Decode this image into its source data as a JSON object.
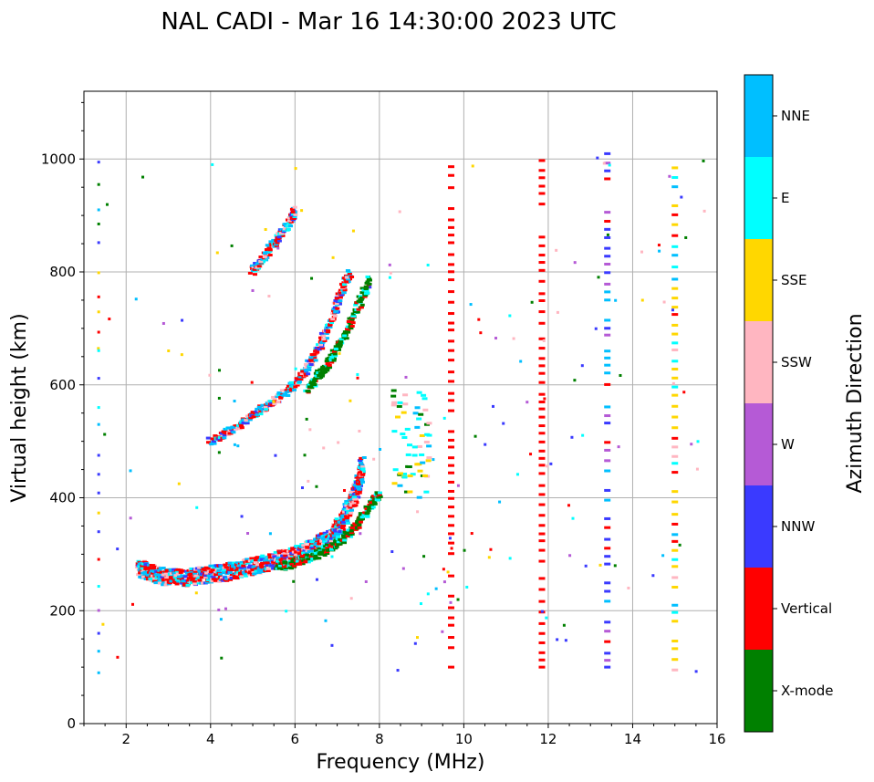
{
  "chart_data": {
    "type": "scatter",
    "title": "NAL CADI - Mar 16 14:30:00 2023 UTC",
    "xlabel": "Frequency (MHz)",
    "ylabel": "Virtual height (km)",
    "xlim": [
      1,
      16
    ],
    "ylim": [
      0,
      1120
    ],
    "xticks": [
      2,
      4,
      6,
      8,
      10,
      12,
      14,
      16
    ],
    "yticks": [
      0,
      200,
      400,
      600,
      800,
      1000
    ],
    "grid": true,
    "colorbar": {
      "title": "Azimuth Direction",
      "categories": [
        {
          "label": "X-mode",
          "color": "#008000"
        },
        {
          "label": "Vertical",
          "color": "#ff0000"
        },
        {
          "label": "NNW",
          "color": "#3a3aff"
        },
        {
          "label": "W",
          "color": "#b55ad6"
        },
        {
          "label": "SSW",
          "color": "#ffb6c1"
        },
        {
          "label": "SSE",
          "color": "#ffd700"
        },
        {
          "label": "E",
          "color": "#00ffff"
        },
        {
          "label": "NNE",
          "color": "#00bfff"
        }
      ]
    },
    "series": [
      {
        "name": "F-layer O-mode trace",
        "points": [
          [
            2.3,
            275
          ],
          [
            2.5,
            270
          ],
          [
            2.8,
            262
          ],
          [
            3.2,
            258
          ],
          [
            3.6,
            260
          ],
          [
            4.0,
            265
          ],
          [
            4.4,
            268
          ],
          [
            4.8,
            275
          ],
          [
            5.2,
            282
          ],
          [
            5.6,
            290
          ],
          [
            6.0,
            298
          ],
          [
            6.4,
            310
          ],
          [
            6.8,
            330
          ],
          [
            7.1,
            355
          ],
          [
            7.3,
            385
          ],
          [
            7.5,
            420
          ],
          [
            7.6,
            460
          ]
        ]
      },
      {
        "name": "F-layer X-mode trace",
        "points": [
          [
            5.6,
            275
          ],
          [
            6.0,
            285
          ],
          [
            6.4,
            295
          ],
          [
            6.8,
            310
          ],
          [
            7.2,
            330
          ],
          [
            7.5,
            355
          ],
          [
            7.8,
            385
          ],
          [
            8.0,
            410
          ]
        ]
      },
      {
        "name": "Second-hop trace",
        "points": [
          [
            4.0,
            500
          ],
          [
            4.5,
            520
          ],
          [
            5.0,
            545
          ],
          [
            5.5,
            570
          ],
          [
            6.0,
            600
          ],
          [
            6.3,
            630
          ],
          [
            6.6,
            670
          ],
          [
            6.9,
            720
          ],
          [
            7.1,
            765
          ],
          [
            7.3,
            800
          ]
        ]
      },
      {
        "name": "Second-hop X-mode trace",
        "points": [
          [
            6.3,
            590
          ],
          [
            6.6,
            620
          ],
          [
            6.9,
            650
          ],
          [
            7.2,
            690
          ],
          [
            7.5,
            740
          ],
          [
            7.8,
            790
          ]
        ]
      },
      {
        "name": "Third-hop trace",
        "points": [
          [
            5.0,
            800
          ],
          [
            5.3,
            830
          ],
          [
            5.6,
            860
          ],
          [
            5.9,
            890
          ],
          [
            6.0,
            910
          ]
        ]
      },
      {
        "name": "Vertical stripe 11.8 MHz",
        "x": 11.85,
        "ymin": 100,
        "ymax": 1010,
        "category": "Vertical"
      },
      {
        "name": "Vertical stripe 13.4 MHz",
        "x": 13.4,
        "ymin": 100,
        "ymax": 1010,
        "category": "NNW"
      },
      {
        "name": "Vertical stripe 15.0 MHz",
        "x": 15.0,
        "ymin": 95,
        "ymax": 1000,
        "category": "SSE"
      },
      {
        "name": "Vertical stripe 9.7 MHz",
        "x": 9.7,
        "ymin": 100,
        "ymax": 1000,
        "category": "Vertical"
      }
    ]
  }
}
